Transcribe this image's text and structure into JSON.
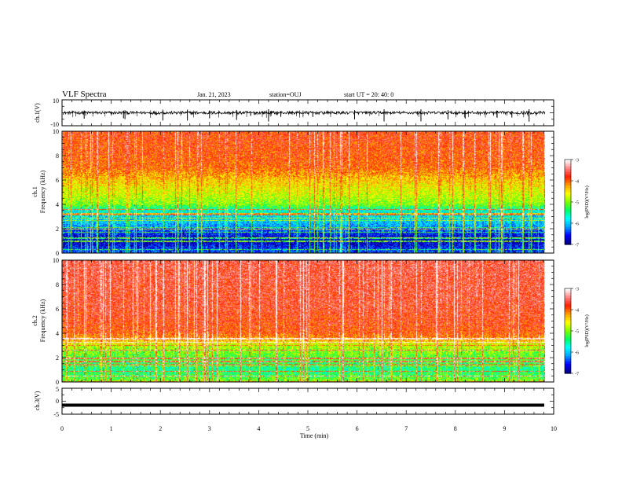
{
  "header": {
    "title": "VLF Spectra",
    "date": "Jan. 21, 2023",
    "station": "station=OUJ",
    "start": "start  UT =  20: 40: 0"
  },
  "chart_data": [
    {
      "type": "line",
      "panel": "ch1-waveform",
      "ylabel": "ch.1(V)",
      "ylim": [
        -10,
        10
      ],
      "yticks": [
        "10",
        "-10"
      ],
      "xlim": [
        0,
        10
      ],
      "baseline": 0,
      "spike_minutes": [
        0.45,
        1.25,
        1.28,
        2.05,
        2.55,
        3.0,
        3.55,
        4.2,
        4.45,
        5.1,
        5.95,
        6.55,
        7.3,
        7.85,
        8.2,
        8.85,
        9.15,
        9.5
      ]
    },
    {
      "type": "heatmap",
      "panel": "ch1-spectrogram",
      "ylabel": "ch.1",
      "ylabel2": "Frequency (kHz)",
      "ylim": [
        0,
        10
      ],
      "yticks": [
        "0",
        "2",
        "4",
        "6",
        "8",
        "10"
      ],
      "xlim": [
        0,
        9.83
      ],
      "zlim": [
        -7,
        -3
      ],
      "zlabel": "log(PSD)(V²/Hz)",
      "colorbar_ticks": [
        "-3",
        "-4",
        "-5",
        "-6",
        "-7"
      ],
      "profile": [
        {
          "f": 0,
          "z": -6.4
        },
        {
          "f": 0.5,
          "z": -6.6
        },
        {
          "f": 1.0,
          "z": -6.9
        },
        {
          "f": 1.5,
          "z": -6.6
        },
        {
          "f": 2.0,
          "z": -6.3
        },
        {
          "f": 2.5,
          "z": -6.0
        },
        {
          "f": 3.0,
          "z": -5.9
        },
        {
          "f": 3.5,
          "z": -5.7
        },
        {
          "f": 4.0,
          "z": -5.0
        },
        {
          "f": 5.0,
          "z": -4.7
        },
        {
          "f": 6.0,
          "z": -4.4
        },
        {
          "f": 7.0,
          "z": -4.0
        },
        {
          "f": 8.0,
          "z": -3.9
        },
        {
          "f": 10.0,
          "z": -3.8
        }
      ]
    },
    {
      "type": "heatmap",
      "panel": "ch2-spectrogram",
      "ylabel": "ch.2",
      "ylabel2": "Frequency (kHz)",
      "ylim": [
        0,
        10
      ],
      "yticks": [
        "0",
        "2",
        "4",
        "6",
        "8",
        "10"
      ],
      "xlim": [
        0,
        9.83
      ],
      "zlim": [
        -7,
        -3
      ],
      "zlabel": "log(PSD)(V²/Hz)",
      "colorbar_ticks": [
        "-3",
        "-4",
        "-5",
        "-6",
        "-7"
      ],
      "profile": [
        {
          "f": 0,
          "z": -5.0
        },
        {
          "f": 0.5,
          "z": -5.3
        },
        {
          "f": 1.0,
          "z": -5.5
        },
        {
          "f": 2.0,
          "z": -5.2
        },
        {
          "f": 3.0,
          "z": -4.8
        },
        {
          "f": 3.5,
          "z": -4.2
        },
        {
          "f": 4.0,
          "z": -3.9
        },
        {
          "f": 6.0,
          "z": -3.7
        },
        {
          "f": 10.0,
          "z": -3.6
        }
      ]
    },
    {
      "type": "line",
      "panel": "ch3-waveform",
      "ylabel": "ch.3(V)",
      "ylim": [
        -5,
        5
      ],
      "yticks": [
        "5",
        "0",
        "-5"
      ],
      "xlim": [
        0,
        10
      ],
      "level": -1.5
    }
  ],
  "xaxis": {
    "label": "Time (min)",
    "ticks": [
      "0",
      "1",
      "2",
      "3",
      "4",
      "5",
      "6",
      "7",
      "8",
      "9",
      "10"
    ]
  },
  "colors": {
    "axes": "#000000",
    "waveform": "#000000",
    "colormap": [
      "#000080",
      "#0000ff",
      "#00a0ff",
      "#00ffff",
      "#00ff60",
      "#80ff00",
      "#ffff00",
      "#ffa000",
      "#ff2000",
      "#ff8080",
      "#ffffff"
    ]
  }
}
